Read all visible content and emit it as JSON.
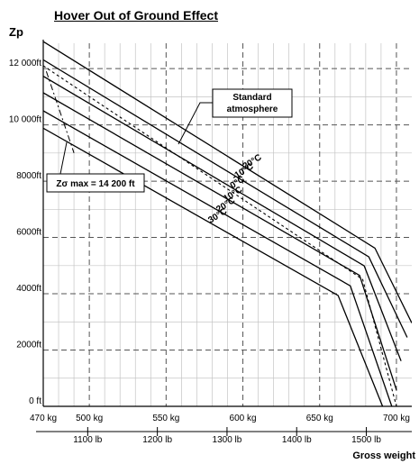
{
  "chart_data": {
    "type": "line",
    "title": "Hover Out of Ground Effect",
    "ylabel": "Zp",
    "xlabel": "Gross weight",
    "xlim": [
      470,
      710
    ],
    "ylim": [
      0,
      12900
    ],
    "x_ticks_kg": [
      {
        "value": 470,
        "label": "470 kg"
      },
      {
        "value": 500,
        "label": "500 kg"
      },
      {
        "value": 550,
        "label": "550 kg"
      },
      {
        "value": 600,
        "label": "600 kg"
      },
      {
        "value": 650,
        "label": "650 kg"
      },
      {
        "value": 700,
        "label": "700 kg"
      }
    ],
    "x_ticks_lb": [
      {
        "kg": 498.95,
        "label": "1100 lb"
      },
      {
        "kg": 544.31,
        "label": "1200 lb"
      },
      {
        "kg": 589.67,
        "label": "1300 lb"
      },
      {
        "kg": 635.03,
        "label": "1400 lb"
      },
      {
        "kg": 680.39,
        "label": "1500 lb"
      }
    ],
    "y_ticks": [
      {
        "value": 0,
        "label": "0 ft"
      },
      {
        "value": 2000,
        "label": "2000ft"
      },
      {
        "value": 4000,
        "label": "4000ft"
      },
      {
        "value": 6000,
        "label": "6000ft"
      },
      {
        "value": 8000,
        "label": "8000ft"
      },
      {
        "value": 10000,
        "label": "10 000ft"
      },
      {
        "value": 12000,
        "label": "12 000ft"
      }
    ],
    "series": [
      {
        "name": "-20°C",
        "points": [
          [
            470,
            12960
          ],
          [
            686,
            5620
          ],
          [
            710,
            2960
          ]
        ]
      },
      {
        "name": "-10°C",
        "points": [
          [
            470,
            12310
          ],
          [
            682,
            5310
          ],
          [
            707,
            2450
          ]
        ]
      },
      {
        "name": "0°C",
        "points": [
          [
            470,
            11730
          ],
          [
            679,
            4990
          ],
          [
            703,
            1610
          ]
        ]
      },
      {
        "name": "10°C",
        "points": [
          [
            470,
            11140
          ],
          [
            676,
            4650
          ],
          [
            700,
            580
          ]
        ]
      },
      {
        "name": "20°C",
        "points": [
          [
            470,
            10500
          ],
          [
            670,
            4280
          ],
          [
            697,
            0
          ]
        ]
      },
      {
        "name": "30°C",
        "points": [
          [
            470,
            9880
          ],
          [
            662,
            3940
          ],
          [
            691,
            0
          ]
        ]
      }
    ],
    "standard_atmosphere": {
      "points": [
        [
          470,
          12100
        ],
        [
          678,
          4510
        ],
        [
          700,
          0
        ]
      ]
    },
    "zp_max_line": {
      "points": [
        [
          472,
          11900
        ],
        [
          490,
          9000
        ]
      ]
    },
    "annotations": {
      "standard_atmosphere_label": "Standard atmosphere",
      "zp_max_label": "Zσ max = 14 200 ft"
    },
    "temp_label_text": [
      "-20°C",
      "-10°C",
      "0°C",
      "10°C",
      "20°C",
      "30°C"
    ],
    "grid": true
  }
}
